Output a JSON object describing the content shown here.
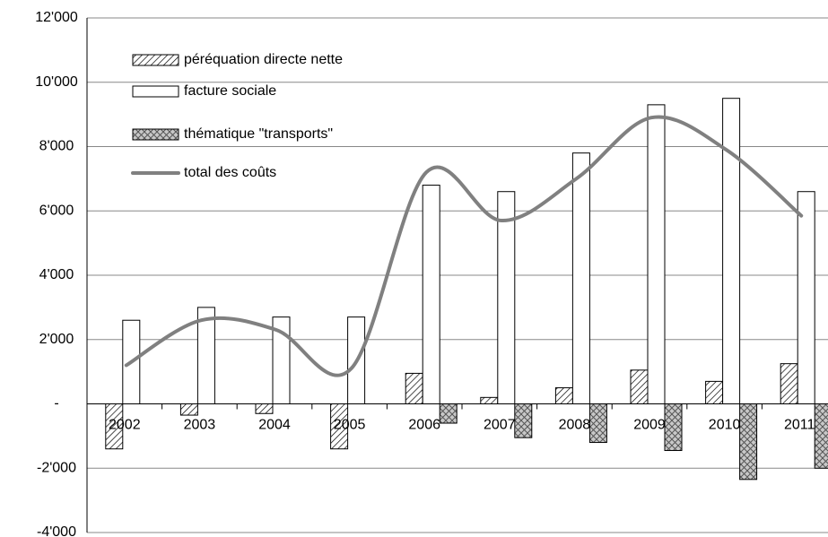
{
  "chart_data": {
    "type": "bar",
    "categories": [
      "2002",
      "2003",
      "2004",
      "2005",
      "2006",
      "2007",
      "2008",
      "2009",
      "2010",
      "2011"
    ],
    "series": [
      {
        "name": "péréquation directe nette",
        "type": "bar",
        "color": "#000000",
        "hatch": "diagonal",
        "values": [
          -1400,
          -350,
          -300,
          -1400,
          950,
          200,
          500,
          1050,
          700,
          1250
        ]
      },
      {
        "name": "facture sociale",
        "type": "bar",
        "color": "#ffffff",
        "hatch": "none",
        "values": [
          2600,
          3000,
          2700,
          2700,
          6800,
          6600,
          7800,
          9300,
          9500,
          6600
        ]
      },
      {
        "name": "thématique \"transports\"",
        "type": "bar",
        "color": "#c8c8c8",
        "hatch": "cross",
        "values": [
          null,
          null,
          null,
          null,
          -600,
          -1050,
          -1200,
          -1450,
          -2350,
          -2000
        ]
      },
      {
        "name": "total des coûts",
        "type": "line",
        "color": "#808080",
        "smooth": true,
        "values": [
          1200,
          2600,
          2300,
          1100,
          7200,
          5700,
          7000,
          8900,
          7900,
          5850
        ]
      }
    ],
    "ylim": [
      -4000,
      12000
    ],
    "yticks": [
      {
        "value": -4000,
        "label": "-4'000"
      },
      {
        "value": -2000,
        "label": "-2'000"
      },
      {
        "value": 0,
        "label": "-"
      },
      {
        "value": 2000,
        "label": "2'000"
      },
      {
        "value": 4000,
        "label": "4'000"
      },
      {
        "value": 6000,
        "label": "6'000"
      },
      {
        "value": 8000,
        "label": "8'000"
      },
      {
        "value": 10000,
        "label": "10'000"
      },
      {
        "value": 12000,
        "label": "12'000"
      }
    ],
    "grid": true,
    "legend": "top-left"
  }
}
